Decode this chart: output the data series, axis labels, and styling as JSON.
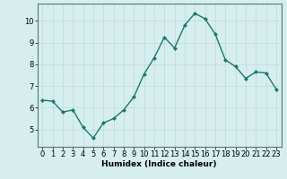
{
  "x": [
    0,
    1,
    2,
    3,
    4,
    5,
    6,
    7,
    8,
    9,
    10,
    11,
    12,
    13,
    14,
    15,
    16,
    17,
    18,
    19,
    20,
    21,
    22,
    23
  ],
  "y": [
    6.35,
    6.3,
    5.8,
    5.9,
    5.1,
    4.6,
    5.3,
    5.5,
    5.9,
    6.5,
    7.55,
    8.3,
    9.25,
    8.75,
    9.8,
    10.35,
    10.1,
    9.4,
    8.2,
    7.9,
    7.35,
    7.65,
    7.6,
    6.85
  ],
  "line_color": "#1a7a6e",
  "marker": "D",
  "marker_size": 2.0,
  "bg_color": "#d6eeee",
  "grid_color": "#c2dcdc",
  "xlabel": "Humidex (Indice chaleur)",
  "ylim": [
    4.2,
    10.8
  ],
  "xlim": [
    -0.5,
    23.5
  ],
  "yticks": [
    5,
    6,
    7,
    8,
    9,
    10
  ],
  "xticks": [
    0,
    1,
    2,
    3,
    4,
    5,
    6,
    7,
    8,
    9,
    10,
    11,
    12,
    13,
    14,
    15,
    16,
    17,
    18,
    19,
    20,
    21,
    22,
    23
  ],
  "xlabel_fontsize": 6.5,
  "tick_fontsize": 6.0,
  "line_width": 1.0
}
